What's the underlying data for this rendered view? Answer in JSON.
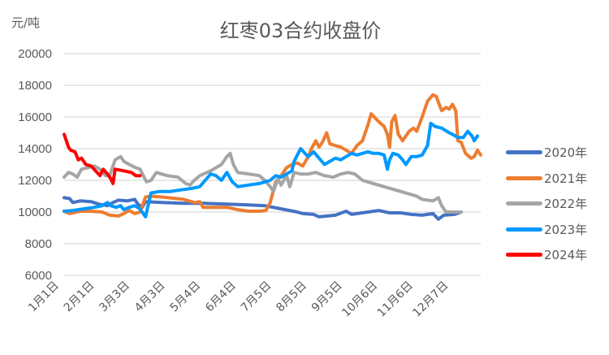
{
  "chart_data": {
    "type": "line",
    "title": "红枣03合约收盘价",
    "ylabel": "元/吨",
    "xlabel": "",
    "ylim": [
      6000,
      20000
    ],
    "yticks": [
      20000,
      18000,
      16000,
      14000,
      12000,
      10000,
      8000,
      6000
    ],
    "x_tick_labels": [
      "1月1日",
      "2月1日",
      "3月3日",
      "4月3日",
      "5月4日",
      "6月4日",
      "7月5日",
      "8月5日",
      "9月5日",
      "10月6日",
      "11月6日",
      "12月7日"
    ],
    "grid": true,
    "legend_position": "right",
    "series": [
      {
        "name": "2020年",
        "color": "#4472C4",
        "points": [
          [
            0,
            10900
          ],
          [
            5,
            10850
          ],
          [
            8,
            10600
          ],
          [
            15,
            10700
          ],
          [
            25,
            10650
          ],
          [
            32,
            10500
          ],
          [
            40,
            10400
          ],
          [
            45,
            10600
          ],
          [
            50,
            10750
          ],
          [
            58,
            10700
          ],
          [
            65,
            10800
          ],
          [
            68,
            10500
          ],
          [
            72,
            10300
          ],
          [
            75,
            10650
          ],
          [
            90,
            10600
          ],
          [
            110,
            10550
          ],
          [
            130,
            10550
          ],
          [
            150,
            10500
          ],
          [
            170,
            10450
          ],
          [
            185,
            10400
          ],
          [
            200,
            10200
          ],
          [
            215,
            10000
          ],
          [
            220,
            9900
          ],
          [
            230,
            9850
          ],
          [
            235,
            9700
          ],
          [
            250,
            9800
          ],
          [
            260,
            10050
          ],
          [
            265,
            9850
          ],
          [
            280,
            10000
          ],
          [
            290,
            10100
          ],
          [
            300,
            9950
          ],
          [
            310,
            9950
          ],
          [
            320,
            9850
          ],
          [
            330,
            9800
          ],
          [
            340,
            9900
          ],
          [
            345,
            9550
          ],
          [
            350,
            9800
          ],
          [
            360,
            9850
          ],
          [
            366,
            10000
          ]
        ]
      },
      {
        "name": "2021年",
        "color": "#ED7D31",
        "points": [
          [
            0,
            10050
          ],
          [
            5,
            9900
          ],
          [
            15,
            10050
          ],
          [
            25,
            10050
          ],
          [
            35,
            10000
          ],
          [
            42,
            9800
          ],
          [
            50,
            9750
          ],
          [
            55,
            9900
          ],
          [
            60,
            10100
          ],
          [
            65,
            9900
          ],
          [
            70,
            10000
          ],
          [
            75,
            10950
          ],
          [
            80,
            11000
          ],
          [
            90,
            10950
          ],
          [
            110,
            10800
          ],
          [
            120,
            10600
          ],
          [
            125,
            10650
          ],
          [
            128,
            10300
          ],
          [
            140,
            10300
          ],
          [
            150,
            10300
          ],
          [
            160,
            10150
          ],
          [
            170,
            10050
          ],
          [
            180,
            10050
          ],
          [
            186,
            10100
          ],
          [
            190,
            10600
          ],
          [
            195,
            11900
          ],
          [
            200,
            12300
          ],
          [
            205,
            12800
          ],
          [
            210,
            13000
          ],
          [
            215,
            13100
          ],
          [
            220,
            12900
          ],
          [
            225,
            13500
          ],
          [
            228,
            14000
          ],
          [
            232,
            14500
          ],
          [
            235,
            14100
          ],
          [
            238,
            14400
          ],
          [
            242,
            15000
          ],
          [
            245,
            14300
          ],
          [
            255,
            14100
          ],
          [
            265,
            13700
          ],
          [
            270,
            14200
          ],
          [
            275,
            14500
          ],
          [
            280,
            15500
          ],
          [
            283,
            16200
          ],
          [
            290,
            15700
          ],
          [
            295,
            15400
          ],
          [
            298,
            14900
          ],
          [
            300,
            14100
          ],
          [
            302,
            15700
          ],
          [
            305,
            16100
          ],
          [
            308,
            14900
          ],
          [
            312,
            14500
          ],
          [
            318,
            15100
          ],
          [
            322,
            15300
          ],
          [
            325,
            15100
          ],
          [
            330,
            16000
          ],
          [
            335,
            17000
          ],
          [
            340,
            17400
          ],
          [
            343,
            17300
          ],
          [
            348,
            16400
          ],
          [
            352,
            16600
          ],
          [
            355,
            16500
          ],
          [
            358,
            16800
          ],
          [
            361,
            16400
          ],
          [
            363,
            14500
          ],
          [
            366,
            14400
          ],
          [
            370,
            13700
          ],
          [
            375,
            13400
          ],
          [
            378,
            13500
          ],
          [
            381,
            13900
          ],
          [
            384,
            13600
          ]
        ]
      },
      {
        "name": "2022年",
        "color": "#A5A5A5",
        "points": [
          [
            0,
            12200
          ],
          [
            4,
            12500
          ],
          [
            8,
            12400
          ],
          [
            12,
            12200
          ],
          [
            16,
            12700
          ],
          [
            22,
            12800
          ],
          [
            28,
            12900
          ],
          [
            33,
            12700
          ],
          [
            38,
            12300
          ],
          [
            42,
            12300
          ],
          [
            47,
            13300
          ],
          [
            52,
            13500
          ],
          [
            55,
            13200
          ],
          [
            60,
            13000
          ],
          [
            66,
            12800
          ],
          [
            70,
            12700
          ],
          [
            73,
            12300
          ],
          [
            76,
            11900
          ],
          [
            80,
            12000
          ],
          [
            85,
            12500
          ],
          [
            95,
            12300
          ],
          [
            105,
            12200
          ],
          [
            112,
            11800
          ],
          [
            116,
            11700
          ],
          [
            120,
            12000
          ],
          [
            125,
            12300
          ],
          [
            135,
            12600
          ],
          [
            145,
            13000
          ],
          [
            150,
            13500
          ],
          [
            153,
            13700
          ],
          [
            156,
            13000
          ],
          [
            160,
            12500
          ],
          [
            170,
            12400
          ],
          [
            180,
            12300
          ],
          [
            185,
            12000
          ],
          [
            190,
            11600
          ],
          [
            193,
            11300
          ],
          [
            197,
            12100
          ],
          [
            200,
            11700
          ],
          [
            205,
            12300
          ],
          [
            208,
            11600
          ],
          [
            212,
            12500
          ],
          [
            218,
            12400
          ],
          [
            225,
            12400
          ],
          [
            232,
            12500
          ],
          [
            240,
            12300
          ],
          [
            248,
            12200
          ],
          [
            255,
            12400
          ],
          [
            262,
            12500
          ],
          [
            268,
            12400
          ],
          [
            275,
            12000
          ],
          [
            285,
            11800
          ],
          [
            295,
            11600
          ],
          [
            305,
            11400
          ],
          [
            315,
            11200
          ],
          [
            325,
            11000
          ],
          [
            330,
            10800
          ],
          [
            340,
            10700
          ],
          [
            345,
            10900
          ],
          [
            348,
            10400
          ],
          [
            352,
            10000
          ],
          [
            358,
            10000
          ],
          [
            366,
            10000
          ]
        ]
      },
      {
        "name": "2023年",
        "color": "#0099FF",
        "points": [
          [
            0,
            10050
          ],
          [
            8,
            10100
          ],
          [
            18,
            10200
          ],
          [
            28,
            10300
          ],
          [
            35,
            10400
          ],
          [
            40,
            10600
          ],
          [
            43,
            10400
          ],
          [
            48,
            10300
          ],
          [
            52,
            10400
          ],
          [
            55,
            10150
          ],
          [
            60,
            10300
          ],
          [
            65,
            10400
          ],
          [
            70,
            10200
          ],
          [
            75,
            9700
          ],
          [
            80,
            11200
          ],
          [
            88,
            11300
          ],
          [
            98,
            11300
          ],
          [
            108,
            11400
          ],
          [
            118,
            11500
          ],
          [
            125,
            11600
          ],
          [
            130,
            12000
          ],
          [
            135,
            12400
          ],
          [
            140,
            12300
          ],
          [
            145,
            12000
          ],
          [
            150,
            12500
          ],
          [
            155,
            11900
          ],
          [
            160,
            11600
          ],
          [
            170,
            11700
          ],
          [
            180,
            11800
          ],
          [
            190,
            12000
          ],
          [
            195,
            12300
          ],
          [
            200,
            12200
          ],
          [
            205,
            12400
          ],
          [
            210,
            12600
          ],
          [
            212,
            13200
          ],
          [
            215,
            13600
          ],
          [
            218,
            14000
          ],
          [
            222,
            13700
          ],
          [
            225,
            13500
          ],
          [
            230,
            13800
          ],
          [
            235,
            13400
          ],
          [
            240,
            13000
          ],
          [
            245,
            13200
          ],
          [
            250,
            13400
          ],
          [
            255,
            13300
          ],
          [
            260,
            13500
          ],
          [
            265,
            13700
          ],
          [
            270,
            13600
          ],
          [
            275,
            13700
          ],
          [
            280,
            13800
          ],
          [
            285,
            13700
          ],
          [
            290,
            13700
          ],
          [
            295,
            13600
          ],
          [
            298,
            12700
          ],
          [
            300,
            13300
          ],
          [
            303,
            13700
          ],
          [
            308,
            13600
          ],
          [
            312,
            13300
          ],
          [
            315,
            13000
          ],
          [
            320,
            13500
          ],
          [
            325,
            13500
          ],
          [
            330,
            13600
          ],
          [
            335,
            14200
          ],
          [
            338,
            15600
          ],
          [
            342,
            15400
          ],
          [
            348,
            15300
          ],
          [
            355,
            15000
          ],
          [
            358,
            14900
          ],
          [
            363,
            14700
          ],
          [
            368,
            14700
          ],
          [
            372,
            15100
          ],
          [
            376,
            14800
          ],
          [
            378,
            14500
          ],
          [
            381,
            14800
          ]
        ]
      },
      {
        "name": "2024年",
        "color": "#FF0000",
        "points": [
          [
            0,
            14900
          ],
          [
            2,
            14500
          ],
          [
            4,
            14100
          ],
          [
            6,
            13900
          ],
          [
            10,
            13800
          ],
          [
            13,
            13300
          ],
          [
            16,
            13400
          ],
          [
            20,
            13000
          ],
          [
            25,
            12900
          ],
          [
            29,
            12600
          ],
          [
            33,
            12300
          ],
          [
            36,
            12700
          ],
          [
            40,
            12400
          ],
          [
            43,
            12100
          ],
          [
            45,
            11800
          ],
          [
            47,
            12700
          ],
          [
            55,
            12600
          ],
          [
            62,
            12500
          ],
          [
            66,
            12300
          ],
          [
            70,
            12300
          ]
        ]
      }
    ]
  },
  "legend": {
    "items": [
      {
        "label": "2020年",
        "color": "#4472C4"
      },
      {
        "label": "2021年",
        "color": "#ED7D31"
      },
      {
        "label": "2022年",
        "color": "#A5A5A5"
      },
      {
        "label": "2023年",
        "color": "#0099FF"
      },
      {
        "label": "2024年",
        "color": "#FF0000"
      }
    ]
  }
}
